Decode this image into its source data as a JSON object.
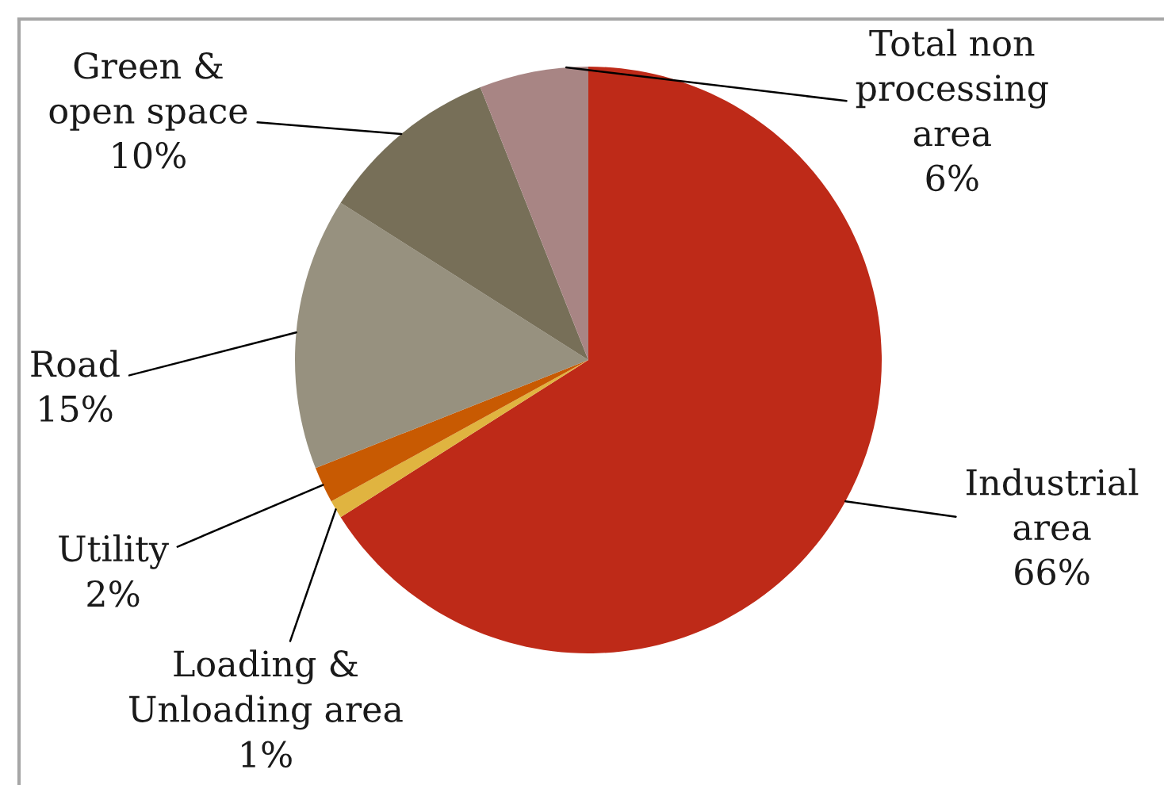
{
  "chart_data": {
    "type": "pie",
    "categories": [
      "Industrial\narea",
      "Loading &\nUnloading area",
      "Utility",
      "Road",
      "Green &\nopen space",
      "Total non\nprocessing\narea"
    ],
    "values": [
      66,
      1,
      2,
      15,
      10,
      6
    ],
    "colors": [
      "#be2a18",
      "#e0b440",
      "#c85a02",
      "#97917f",
      "#776f58",
      "#a88584"
    ],
    "value_labels": [
      "66%",
      "1%",
      "2%",
      "15%",
      "10%",
      "6%"
    ]
  }
}
